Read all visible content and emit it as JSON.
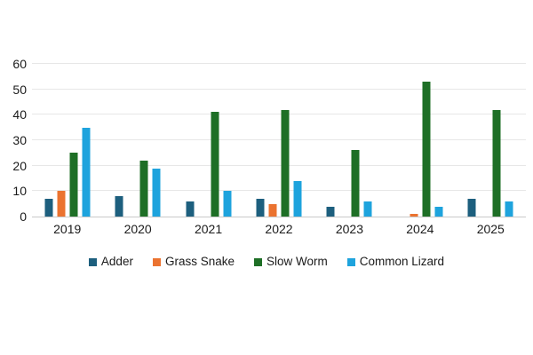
{
  "chart_data": {
    "type": "bar",
    "title": "",
    "categories": [
      "2019",
      "2020",
      "2021",
      "2022",
      "2023",
      "2024",
      "2025"
    ],
    "series": [
      {
        "name": "Adder",
        "color": "#1d5f7e",
        "values": [
          7,
          8,
          6,
          7,
          4,
          0,
          7
        ]
      },
      {
        "name": "Grass Snake",
        "color": "#eb7330",
        "values": [
          10,
          0,
          0,
          5,
          0,
          1,
          0
        ]
      },
      {
        "name": "Slow Worm",
        "color": "#1e6f26",
        "values": [
          25,
          22,
          41,
          42,
          26,
          53,
          42
        ]
      },
      {
        "name": "Common Lizard",
        "color": "#1ea3dd",
        "values": [
          35,
          19,
          10,
          14,
          6,
          4,
          6
        ]
      }
    ],
    "xlabel": "",
    "ylabel": "",
    "ylim": [
      0,
      60
    ],
    "ytick_step": 10,
    "ytick_labels": [
      "0",
      "10",
      "20",
      "30",
      "40",
      "50",
      "60"
    ],
    "grid": true,
    "legend_position": "bottom"
  },
  "colors": {
    "background": "#ffffff",
    "gridline": "#e7e7e7",
    "axis_line": "#c9c9c9",
    "text": "#1a1a1a"
  }
}
